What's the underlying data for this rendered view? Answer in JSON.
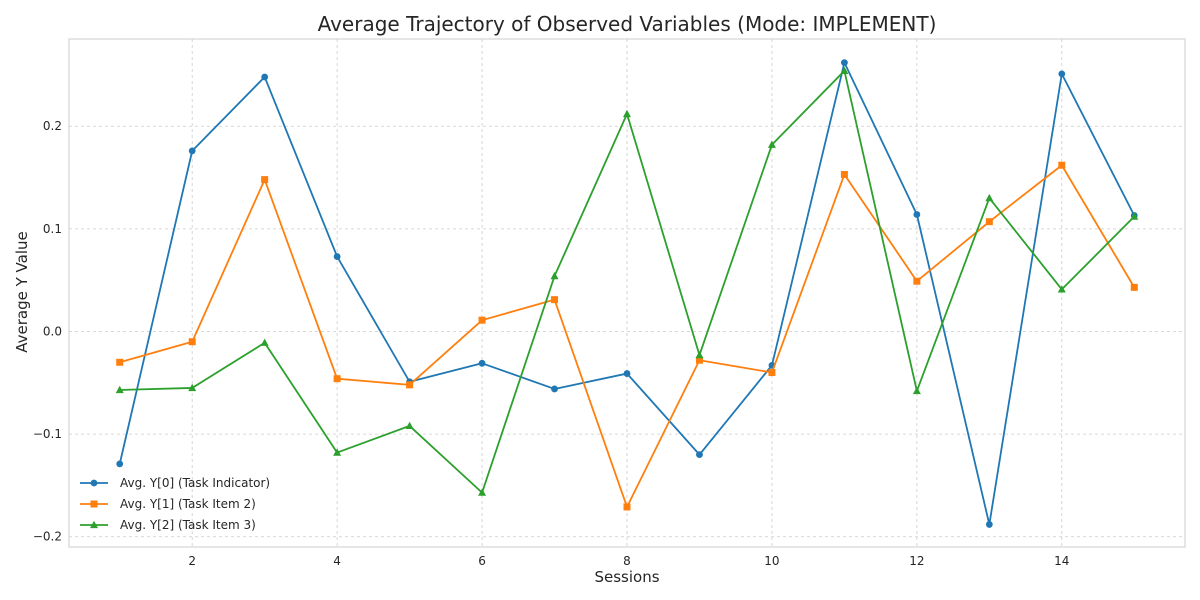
{
  "chart_data": {
    "type": "line",
    "title": "Average Trajectory of Observed Variables (Mode: IMPLEMENT)",
    "xlabel": "Sessions",
    "ylabel": "Average Y Value",
    "x": [
      1,
      2,
      3,
      4,
      5,
      6,
      7,
      8,
      9,
      10,
      11,
      12,
      13,
      14,
      15
    ],
    "xlim": [
      0.3,
      15.7
    ],
    "ylim": [
      -0.21,
      0.285
    ],
    "xticks": [
      2,
      4,
      6,
      8,
      10,
      12,
      14
    ],
    "xtick_labels": [
      "2",
      "4",
      "6",
      "8",
      "10",
      "12",
      "14"
    ],
    "yticks": [
      -0.2,
      -0.1,
      0.0,
      0.1,
      0.2
    ],
    "ytick_labels": [
      "−0.2",
      "−0.1",
      "0.0",
      "0.1",
      "0.2"
    ],
    "grid": true,
    "legend_position": "lower-left",
    "series": [
      {
        "name": "Avg. Y[0] (Task Indicator)",
        "color": "#1f77b4",
        "marker": "circle",
        "values": [
          -0.129,
          0.176,
          0.248,
          0.073,
          -0.049,
          -0.031,
          -0.056,
          -0.041,
          -0.12,
          -0.033,
          0.262,
          0.114,
          -0.188,
          0.251,
          0.113
        ]
      },
      {
        "name": "Avg. Y[1] (Task Item 2)",
        "color": "#ff7f0e",
        "marker": "square",
        "values": [
          -0.03,
          -0.01,
          0.148,
          -0.046,
          -0.052,
          0.011,
          0.031,
          -0.171,
          -0.028,
          -0.04,
          0.153,
          0.049,
          0.107,
          0.162,
          0.043
        ]
      },
      {
        "name": "Avg. Y[2] (Task Item 3)",
        "color": "#2ca02c",
        "marker": "triangle",
        "values": [
          -0.057,
          -0.055,
          -0.011,
          -0.118,
          -0.092,
          -0.157,
          0.054,
          0.212,
          -0.023,
          0.182,
          0.254,
          -0.058,
          0.13,
          0.041,
          0.112
        ]
      }
    ]
  }
}
